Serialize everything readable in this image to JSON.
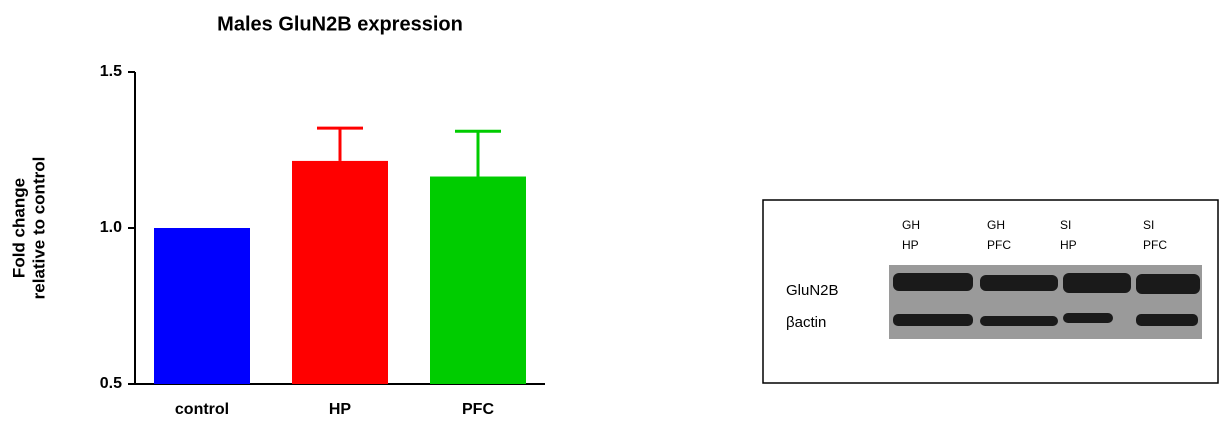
{
  "chart_data": {
    "type": "bar",
    "title": "Males GluN2B expression",
    "ylabel": [
      "Fold change",
      "relative to control"
    ],
    "categories": [
      "control",
      "HP",
      "PFC"
    ],
    "values": [
      1.0,
      1.215,
      1.165
    ],
    "errors": [
      null,
      0.105,
      0.145
    ],
    "colors": [
      "#0000ff",
      "#ff0000",
      "#00cc00"
    ],
    "ylim": [
      0.5,
      1.5
    ],
    "yticks": [
      {
        "value": 0.5,
        "label": "0.5"
      },
      {
        "value": 1.0,
        "label": "1.0"
      },
      {
        "value": 1.5,
        "label": "1.5"
      }
    ]
  },
  "blot": {
    "lanes": [
      [
        "GH",
        "HP"
      ],
      [
        "GH",
        "PFC"
      ],
      [
        "SI",
        "HP"
      ],
      [
        "SI",
        "PFC"
      ]
    ],
    "rows": [
      "GluN2B",
      "βactin"
    ]
  }
}
